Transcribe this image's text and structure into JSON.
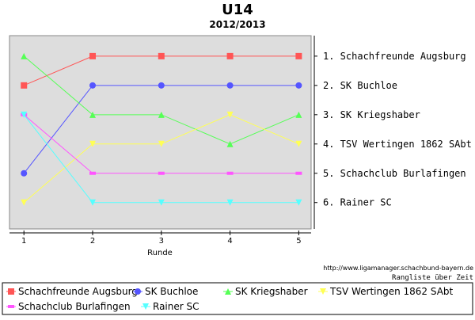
{
  "chart_data": {
    "type": "line",
    "title": "U14",
    "subtitle": "2012/2013",
    "xlabel": "Runde",
    "ylabel": "",
    "x": [
      1,
      2,
      3,
      4,
      5
    ],
    "ylim": [
      6.9,
      0.3
    ],
    "y_inverted": true,
    "grid": false,
    "legend_placement": "bottom",
    "right_axis_labels": [
      "1. Schachfreunde Augsburg",
      "2. SK Buchloe",
      "3. SK Kriegshaber",
      "4. TSV Wertingen 1862 SAbt",
      "5. Schachclub Burlafingen",
      "6. Rainer SC"
    ],
    "series": [
      {
        "name": "Schachfreunde Augsburg",
        "color": "#ff5555",
        "marker": "square",
        "values": [
          2,
          1,
          1,
          1,
          1
        ]
      },
      {
        "name": "SK Buchloe",
        "color": "#5555ff",
        "marker": "circle",
        "values": [
          5,
          2,
          2,
          2,
          2
        ]
      },
      {
        "name": "SK Kriegshaber",
        "color": "#55ff55",
        "marker": "triangle-up",
        "values": [
          1,
          3,
          3,
          4,
          3
        ]
      },
      {
        "name": "TSV Wertingen 1862 SAbt",
        "color": "#ffff55",
        "marker": "triangle-down",
        "values": [
          6,
          4,
          4,
          3,
          4
        ]
      },
      {
        "name": "Schachclub Burlafingen",
        "color": "#ff55ff",
        "marker": "dash",
        "values": [
          3,
          5,
          5,
          5,
          5
        ]
      },
      {
        "name": "Rainer SC",
        "color": "#55ffff",
        "marker": "triangle-down",
        "values": [
          3,
          6,
          6,
          6,
          6
        ]
      }
    ],
    "footer_url": "http://www.ligamanager.schachbund-bayern.de",
    "footer_caption": "Rangliste über Zeit",
    "plot_background": "#dddddd"
  }
}
